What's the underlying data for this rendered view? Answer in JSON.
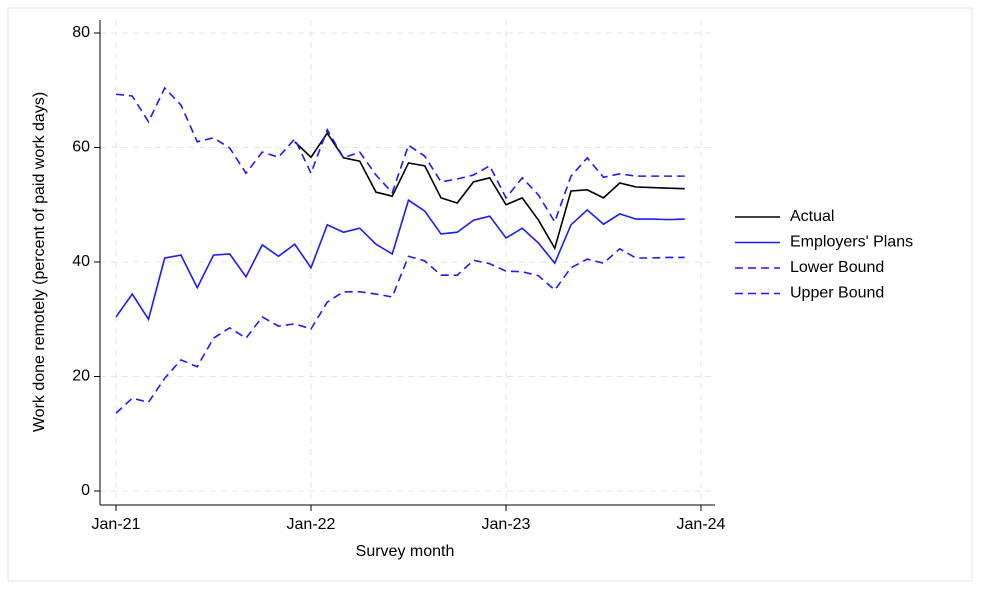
{
  "chart_data": {
    "type": "line",
    "x_label": "Survey month",
    "y_label": "Work done remotely (percent of paid work days)",
    "x": [
      "2021-01",
      "2021-02",
      "2021-03",
      "2021-04",
      "2021-05",
      "2021-06",
      "2021-07",
      "2021-08",
      "2021-09",
      "2021-10",
      "2021-11",
      "2021-12",
      "2022-01",
      "2022-02",
      "2022-03",
      "2022-04",
      "2022-05",
      "2022-06",
      "2022-07",
      "2022-08",
      "2022-09",
      "2022-10",
      "2022-11",
      "2022-12",
      "2023-01",
      "2023-02",
      "2023-03",
      "2023-04",
      "2023-05",
      "2023-06",
      "2023-07",
      "2023-08",
      "2023-09",
      "2023-10",
      "2023-11",
      "2023-12"
    ],
    "xlim": [
      "2021-01",
      "2024-01"
    ],
    "xticks": [
      {
        "value": "2021-01",
        "label": "Jan-21"
      },
      {
        "value": "2022-01",
        "label": "Jan-22"
      },
      {
        "value": "2023-01",
        "label": "Jan-23"
      },
      {
        "value": "2024-01",
        "label": "Jan-24"
      }
    ],
    "ylim": [
      0,
      80
    ],
    "yticks": [
      0,
      20,
      40,
      60,
      80
    ],
    "grid": true,
    "legend_position": "right",
    "series": [
      {
        "name": "Actual",
        "color": "#000000",
        "linestyle": "solid",
        "values": [
          null,
          null,
          null,
          null,
          null,
          null,
          null,
          null,
          null,
          null,
          null,
          61.0,
          58.3,
          62.5,
          58.2,
          57.6,
          52.2,
          51.5,
          57.3,
          56.8,
          51.2,
          50.3,
          54.0,
          54.7,
          50.0,
          51.2,
          47.3,
          42.4,
          52.4,
          52.6,
          51.2,
          53.8,
          53.1,
          53.0,
          52.9,
          52.8
        ]
      },
      {
        "name": "Employers' Plans",
        "color": "#1a1aff",
        "linestyle": "solid",
        "values": [
          30.4,
          34.4,
          30.0,
          40.7,
          41.2,
          35.5,
          41.2,
          41.4,
          37.4,
          43.0,
          41.0,
          43.1,
          39.0,
          46.5,
          45.2,
          45.9,
          43.1,
          41.4,
          50.8,
          48.9,
          44.9,
          45.2,
          47.3,
          48.0,
          44.2,
          45.9,
          43.3,
          39.8,
          46.5,
          49.1,
          46.6,
          48.4,
          47.5,
          47.5,
          47.4,
          47.5
        ]
      },
      {
        "name": "Lower Bound",
        "color": "#1a1aff",
        "linestyle": "dashed",
        "values": [
          13.6,
          16.2,
          15.5,
          19.7,
          22.9,
          21.7,
          26.7,
          28.5,
          26.7,
          30.4,
          28.8,
          29.2,
          28.3,
          33.0,
          34.8,
          34.8,
          34.4,
          33.9,
          41.0,
          40.2,
          37.7,
          37.7,
          40.3,
          39.7,
          38.4,
          38.3,
          37.6,
          35.1,
          39.0,
          40.5,
          39.8,
          42.3,
          40.7,
          40.7,
          40.8,
          40.8
        ]
      },
      {
        "name": "Upper Bound",
        "color": "#1a1aff",
        "linestyle": "dashed",
        "values": [
          69.3,
          69.0,
          64.5,
          70.4,
          67.4,
          61.0,
          61.7,
          59.9,
          55.5,
          59.2,
          58.3,
          61.5,
          55.5,
          63.1,
          58.2,
          59.2,
          55.2,
          52.1,
          60.4,
          58.5,
          54.0,
          54.5,
          55.2,
          56.8,
          51.2,
          54.7,
          51.7,
          47.0,
          55.0,
          58.2,
          54.8,
          55.4,
          55.0,
          55.0,
          55.0,
          55.0
        ]
      }
    ]
  }
}
